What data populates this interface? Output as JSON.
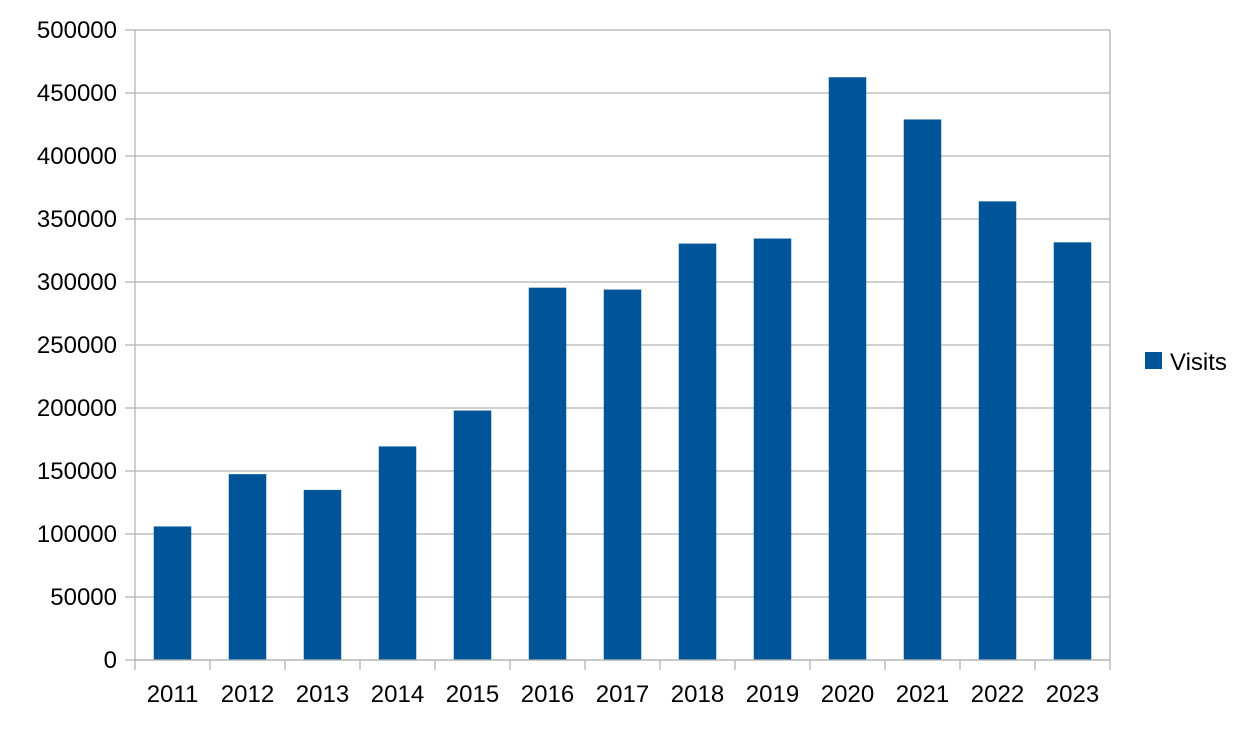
{
  "chart_data": {
    "type": "bar",
    "categories": [
      "2011",
      "2012",
      "2013",
      "2014",
      "2015",
      "2016",
      "2017",
      "2018",
      "2019",
      "2020",
      "2021",
      "2022",
      "2023"
    ],
    "series": [
      {
        "name": "Visits",
        "color": "#005599",
        "values": [
          106000,
          147500,
          135000,
          169500,
          198000,
          295500,
          294000,
          330500,
          334500,
          462500,
          429000,
          364000,
          331500
        ]
      }
    ],
    "yticks": [
      "0",
      "50000",
      "100000",
      "150000",
      "200000",
      "250000",
      "300000",
      "350000",
      "400000",
      "450000",
      "500000"
    ],
    "ylim": [
      0,
      500000
    ],
    "grid": true,
    "legend_position": "right"
  }
}
